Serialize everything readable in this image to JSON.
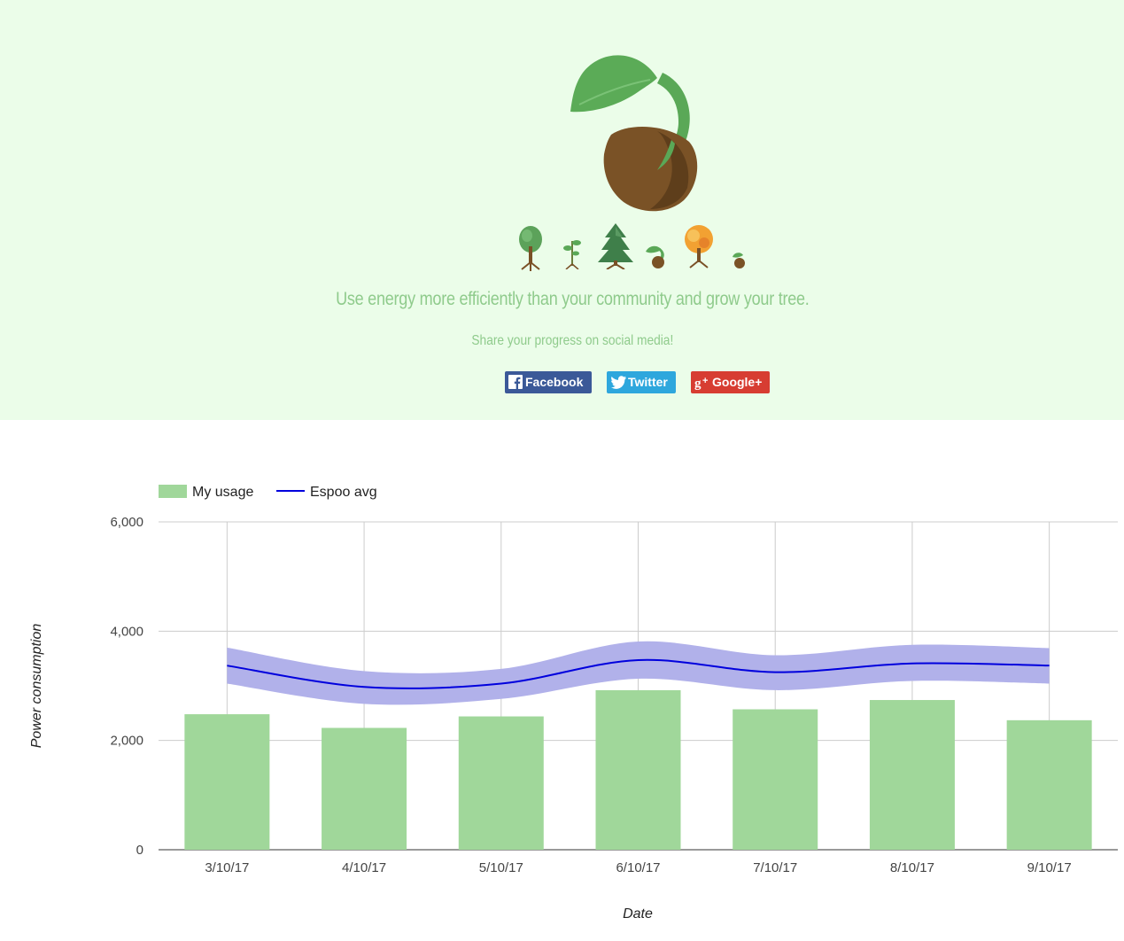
{
  "hero": {
    "tagline": "Use energy more efficiently than your community and grow your tree.",
    "share_prompt": "Share your progress on social media!",
    "share_buttons": [
      {
        "label": "Facebook",
        "icon": "facebook-icon",
        "color": "#3b5998"
      },
      {
        "label": "Twitter",
        "icon": "twitter-icon",
        "color": "#2ea7dd"
      },
      {
        "label": "Google+",
        "icon": "google-plus-icon",
        "color": "#d73d32"
      }
    ],
    "tree_stages": [
      "tree-icon",
      "sprout-icon",
      "pine-tree-icon",
      "seedling-icon",
      "autumn-tree-icon",
      "seed-icon"
    ],
    "background": "#ebfde9",
    "accent": "#8fcb8c"
  },
  "chart_data": {
    "type": "bar",
    "categories": [
      "3/10/17",
      "4/10/17",
      "5/10/17",
      "6/10/17",
      "7/10/17",
      "8/10/17",
      "9/10/17"
    ],
    "series": [
      {
        "name": "My usage",
        "kind": "bar",
        "color": "#a0d79a",
        "values": [
          2480,
          2230,
          2440,
          2920,
          2570,
          2740,
          2370
        ]
      },
      {
        "name": "Espoo avg",
        "kind": "line",
        "color": "#0000dd",
        "values": [
          3370,
          2980,
          3040,
          3470,
          3250,
          3410,
          3370
        ]
      }
    ],
    "band": {
      "color": "#b1b1ea",
      "lower": [
        3040,
        2670,
        2760,
        3130,
        2920,
        3090,
        3040
      ],
      "upper": [
        3700,
        3270,
        3310,
        3810,
        3560,
        3750,
        3690
      ]
    },
    "xlabel": "Date",
    "ylabel": "Power consumption",
    "yticks": [
      "0",
      "2,000",
      "4,000",
      "6,000"
    ],
    "ylim": [
      0,
      6000
    ],
    "grid": true,
    "legend": "top-left"
  }
}
